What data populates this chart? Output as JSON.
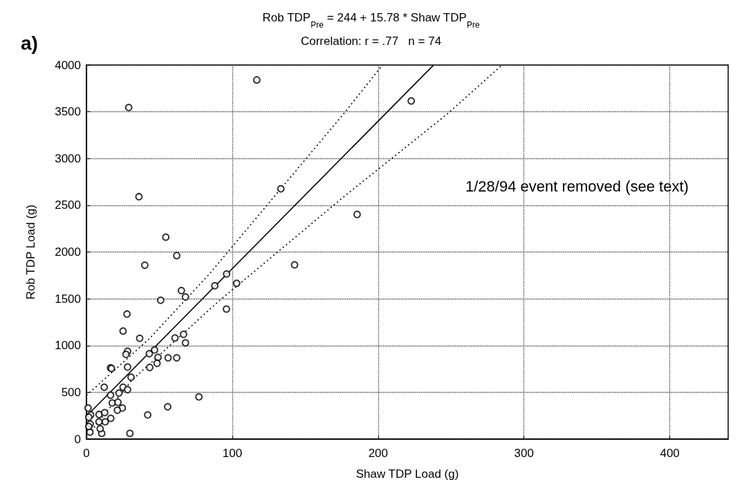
{
  "chart_data": {
    "type": "scatter",
    "title": "Rob TDP$_{Pre}$ = 244 + 15.78 * Shaw TDP$_{Pre}$",
    "subtitle": "Correlation: r = .77   n = 74",
    "xlabel": "Shaw TDP Load (g)",
    "ylabel": "Rob TDP Load (g)",
    "annotations": [
      "a)",
      "1/28/94 event removed (see text)"
    ],
    "xlim": [
      0,
      440
    ],
    "xticks": [
      0,
      100,
      200,
      300,
      400
    ],
    "ylim": [
      0,
      4000
    ],
    "yticks": [
      0,
      500,
      1000,
      1500,
      2000,
      2500,
      3000,
      3500,
      4000
    ],
    "grid": true,
    "series": [
      {
        "marker": "circle",
        "color": "#000000",
        "x": [
          116.8,
          36,
          54.4,
          61.9,
          40,
          133.3,
          142.7,
          96.1,
          222.7,
          185.6,
          29,
          65.1,
          67.9,
          50.9,
          27.8,
          25.1,
          36.5,
          60.7,
          66.6,
          67.9,
          28.2,
          27.1,
          46.7,
          43.1,
          49.1,
          48.4,
          43.4,
          56,
          61.9,
          16.5,
          17.2,
          28.2,
          30.6,
          12.2,
          25.1,
          28.2,
          16.5,
          22.3,
          17.7,
          21.6,
          24.6,
          21.2,
          77.1,
          55.7,
          42,
          29.8,
          1.1,
          2.9,
          8.6,
          12.5,
          12.9,
          16.7,
          8.6,
          2.6,
          1.6,
          10.5,
          2.4,
          1.6,
          9.4,
          88,
          103,
          96
        ],
        "values": [
          3840,
          2592,
          2159,
          1962,
          1859,
          2676,
          1863,
          1765,
          3615,
          2402,
          3545,
          1588,
          1519,
          1484,
          1337,
          1155,
          1078,
          1081,
          1120,
          1029,
          938,
          906,
          953,
          913,
          874,
          810,
          766,
          869,
          869,
          761,
          755,
          770,
          662,
          554,
          554,
          529,
          470,
          492,
          386,
          393,
          332,
          308,
          451,
          345,
          258,
          61,
          332,
          258,
          263,
          283,
          185,
          222,
          185,
          160,
          234,
          61,
          74,
          135,
          111,
          1640,
          1665,
          1390
        ]
      },
      {
        "type": "line",
        "marker": "none",
        "line_style": "solid",
        "color": "#000000",
        "x": [
          0,
          238
        ],
        "values": [
          244,
          3999
        ]
      },
      {
        "type": "line",
        "marker": "none",
        "line_style": "dotted",
        "color": "#000000",
        "x": [
          0,
          43,
          84,
          176,
          203
        ],
        "values": [
          467,
          1071,
          1760,
          3471,
          4000
        ]
      },
      {
        "type": "line",
        "marker": "none",
        "line_style": "dotted",
        "color": "#000000",
        "x": [
          0,
          31,
          90,
          176,
          248,
          285
        ],
        "values": [
          20,
          628,
          1465,
          2585,
          3484,
          4000
        ]
      }
    ]
  }
}
